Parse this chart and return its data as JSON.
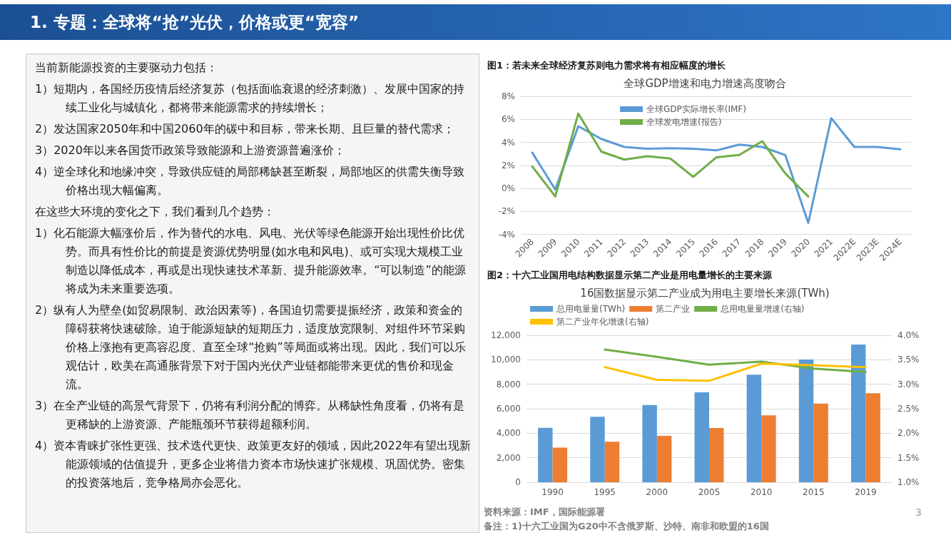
{
  "chart_data": [
    {
      "type": "other",
      "title": "1. 专题：全球将“抢”光伏，价格或更“宽容”",
      "annotations": [
        "当前新能源投资的主要驱动力包括：",
        "1）短期内，各国经历疫情后经济复苏（包括面临衰退的经济刺激）、发展中国家的持续工业化与城镇化，都将带来能源需求的持续增长；",
        "2）发达国家2050年和中国2060年的碳中和目标，带来长期、且巨量的替代需求；",
        "3）2020年以来各国货币政策导致能源和上游资源普遍涨价；",
        "4）逆全球化和地缘冲突，导致供应链的局部稀缺甚至断裂，局部地区的供需失衡导致价格出现大幅偏离。",
        "在这些大环境的变化之下，我们看到几个趋势：",
        "1）化石能源大幅涨价后，作为替代的水电、风电、光伏等绿色能源开始出现性价比优势。而具有性价比的前提是资源优势明显(如水电和风电)、或可实现大规模工业制造以降低成本，再或是出现快速技术革新、提升能源效率。“可以制造”的能源将成为未来重要选项。",
        "2）纵有人为壁垒(如贸易限制、政治因素等)，各国迫切需要提振经济，政策和资金的障碍获将快速破除。迫于能源短缺的短期压力，适度放宽限制、对组件环节采购价格上涨抱有更高容忍度、直至全球“抢购”等局面或将出现。因此，我们可以乐观估计，欧美在高通胀背景下对于国内光伏产业链都能带来更优的售价和现金流。",
        "3）在全产业链的高景气背景下，仍将有利润分配的博弈。从稀缺性角度看，仍将有是更稀缺的上游资源、产能瓶颈环节获得超额利润。",
        "4）资本青睐扩张性更强、技术迭代更快、政策更友好的领域，因此2022年有望出现新能源领域的估值提升，更多企业将借力资本市场快速扩张规模、巩固优势。密集的投资落地后，竞争格局亦会恶化。"
      ]
    },
    {
      "type": "line",
      "title": "图1：若未来全球经济复苏则电力需求将有相应幅度的增长",
      "subtitle": "全球GDP增速和电力增速高度吻合",
      "categories": [
        "2008",
        "2009",
        "2010",
        "2011",
        "2012",
        "2013",
        "2014",
        "2015",
        "2016",
        "2017",
        "2018",
        "2019",
        "2020",
        "2021",
        "2022E",
        "2023E",
        "2024E"
      ],
      "series": [
        {
          "name": "全球GDP实际增长率(IMF)",
          "color": "#5b9bd5",
          "values": [
            3.1,
            -0.1,
            5.4,
            4.3,
            3.6,
            3.45,
            3.5,
            3.45,
            3.3,
            3.8,
            3.6,
            2.9,
            -3.0,
            6.1,
            3.6,
            3.6,
            3.4
          ]
        },
        {
          "name": "全球发电增速(报告)",
          "color": "#70ad47",
          "values": [
            1.9,
            -0.7,
            6.5,
            3.2,
            2.5,
            2.8,
            2.6,
            1.0,
            2.7,
            2.9,
            4.1,
            1.3,
            -0.7,
            null,
            null,
            null,
            null
          ]
        }
      ],
      "ylim": [
        -4,
        8
      ],
      "yticks": [
        {
          "value": -4,
          "label": "-4%"
        },
        {
          "value": -2,
          "label": "-2%"
        },
        {
          "value": 0,
          "label": "0%"
        },
        {
          "value": 2,
          "label": "2%"
        },
        {
          "value": 4,
          "label": "4%"
        },
        {
          "value": 6,
          "label": "6%"
        },
        {
          "value": 8,
          "label": "8%"
        }
      ],
      "grid": "y",
      "legend": "top left",
      "marker": "none",
      "line_style": "solid"
    },
    {
      "type": "bar",
      "title": "图2：十六工业国用电结构数据显示第二产业是用电量增长的主要来源",
      "subtitle": "16国数据显示第二产业成为用电主要增长来源(TWh)",
      "categories": [
        "1990",
        "1995",
        "2000",
        "2005",
        "2010",
        "2015",
        "2019"
      ],
      "series": [
        {
          "name": "总用电量量(TWh)",
          "color": "#5b9bd5",
          "values": [
            4440,
            5340,
            6300,
            7340,
            8780,
            10020,
            11240
          ]
        },
        {
          "name": "第二产业",
          "color": "#ed7d31",
          "values": [
            2820,
            3300,
            3780,
            4420,
            5460,
            6420,
            7260
          ]
        },
        {
          "name": "总用电量量增速(右轴)",
          "color": "#70ad47",
          "type": "line",
          "axis": "y2",
          "values": [
            null,
            3.71,
            3.56,
            3.4,
            3.46,
            3.32,
            3.25
          ]
        },
        {
          "name": "第二产业年化增速(右轴)",
          "color": "#ffc000",
          "type": "line",
          "axis": "y2",
          "values": [
            null,
            3.35,
            3.09,
            3.07,
            3.42,
            3.39,
            3.35
          ]
        }
      ],
      "ylim": [
        0,
        12000
      ],
      "yticks": [
        0,
        {
          "value": 2000,
          "label": "2,000"
        },
        {
          "value": 4000,
          "label": "4,000"
        },
        {
          "value": 6000,
          "label": "6,000"
        },
        {
          "value": 8000,
          "label": "8,000"
        },
        {
          "value": 10000,
          "label": "10,000"
        },
        {
          "value": 12000,
          "label": "12,000"
        }
      ],
      "y2lim": [
        1,
        4
      ],
      "y2ticks": [
        {
          "value": 1,
          "label": "1.0%"
        },
        {
          "value": 1.5,
          "label": "1.5%"
        },
        {
          "value": 2,
          "label": "2.0%"
        },
        {
          "value": 2.5,
          "label": "2.5%"
        },
        {
          "value": 3,
          "label": "3.0%"
        },
        {
          "value": 3.5,
          "label": "3.5%"
        },
        {
          "value": 4,
          "label": "4.0%"
        }
      ],
      "grid": "y",
      "legend": "top left",
      "marker": "none",
      "annotations": [
        "资料来源：IMF，国际能源署",
        "备注：1)十六工业国为G20中不含俄罗斯、沙特、南非和欧盟的16国",
        "3"
      ]
    }
  ]
}
